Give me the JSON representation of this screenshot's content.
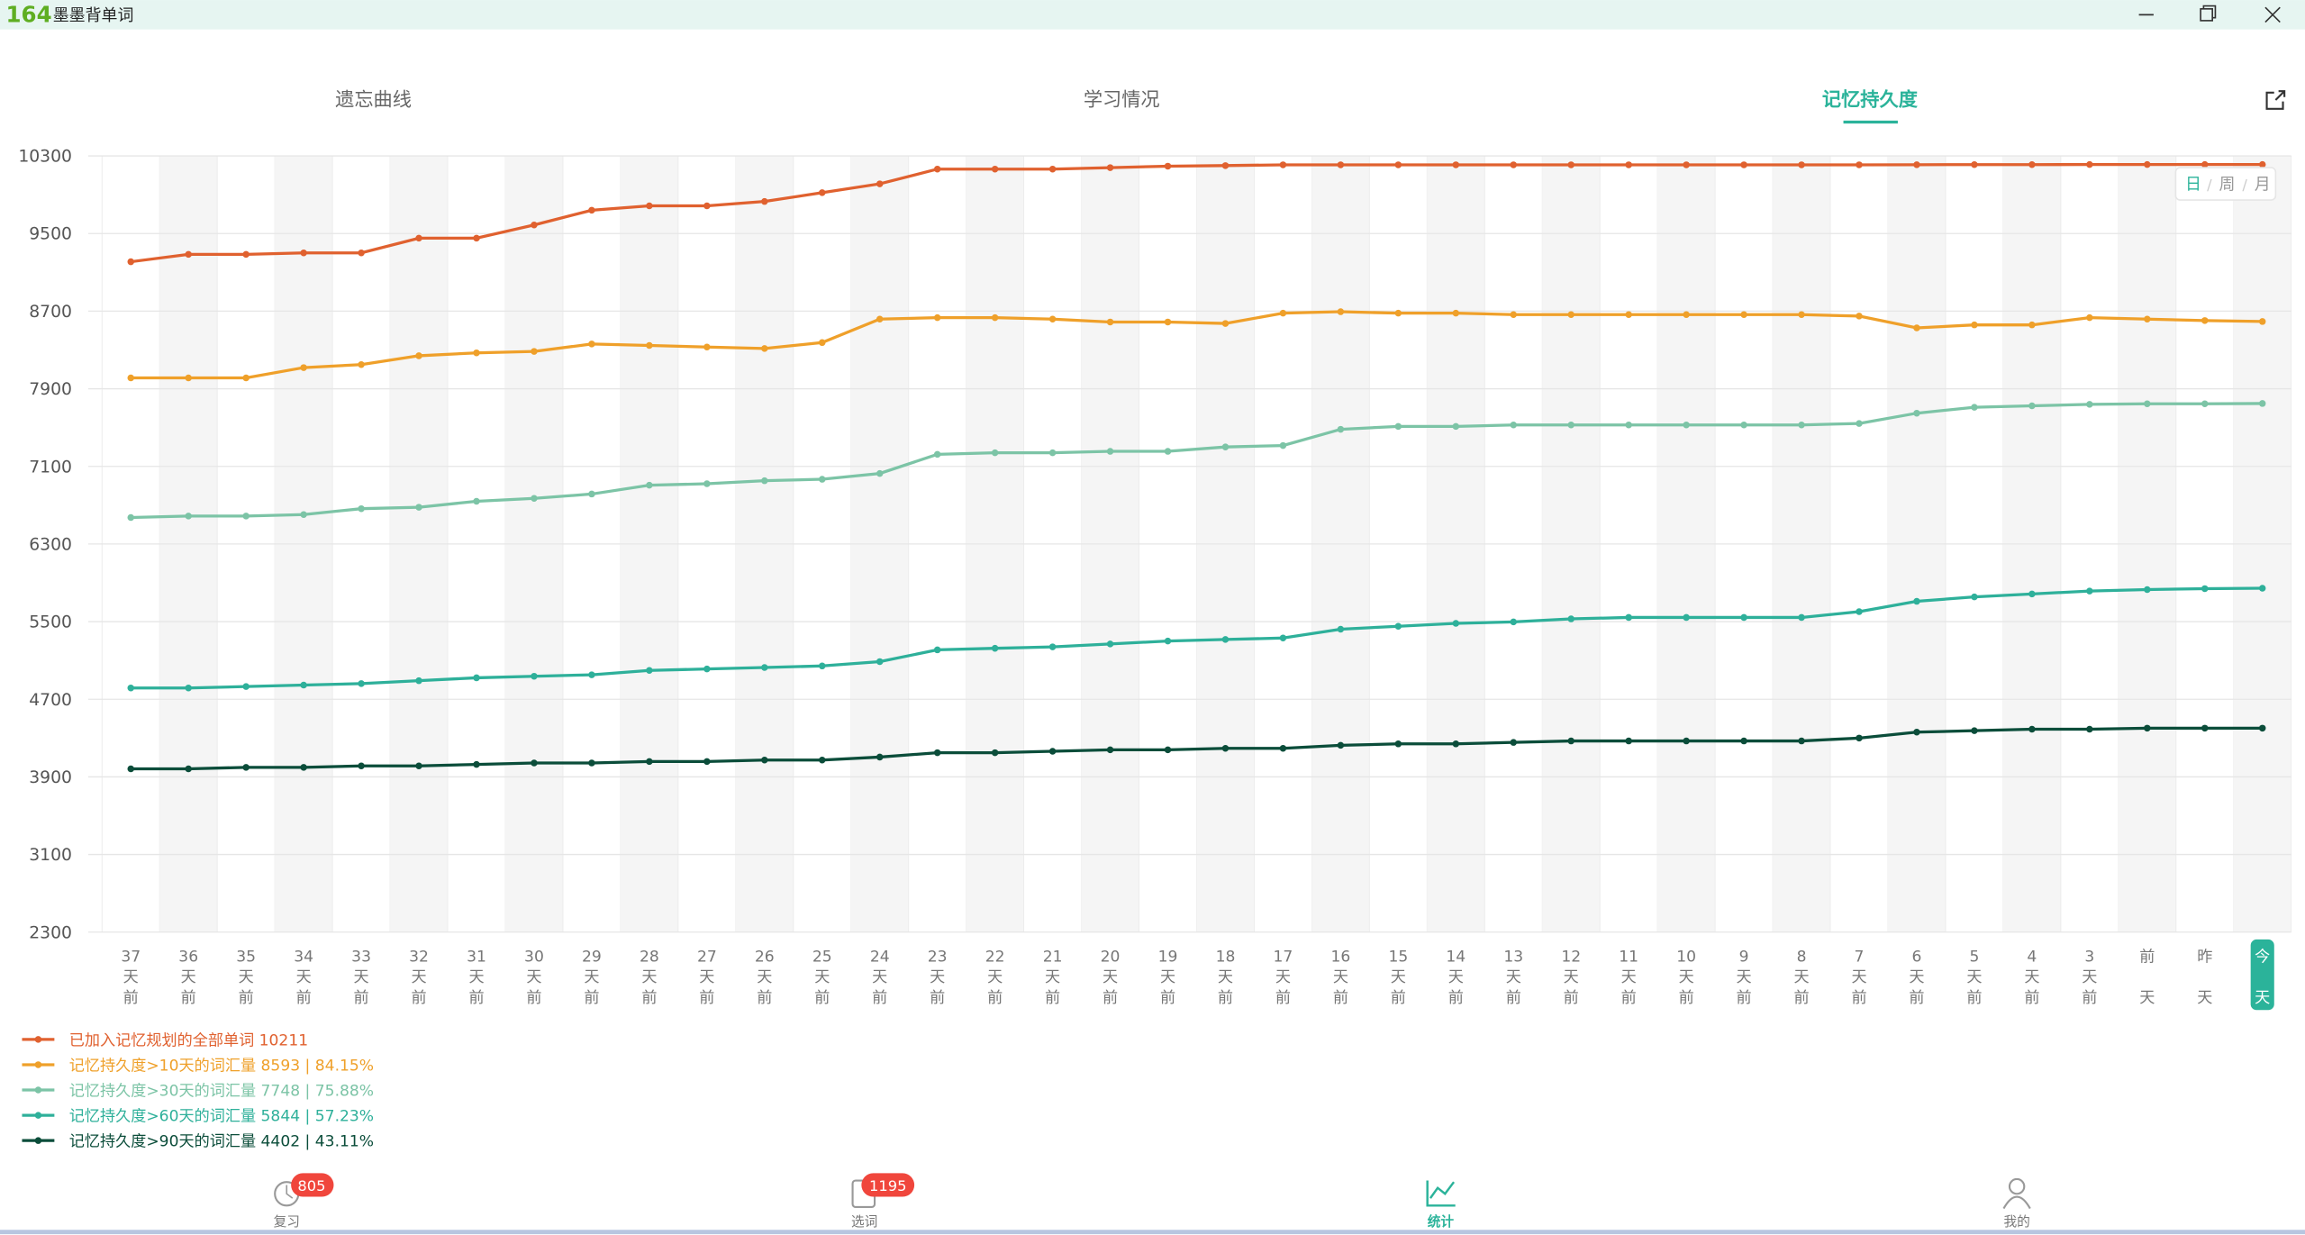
{
  "window": {
    "logo": "164",
    "title": "墨墨背单词"
  },
  "tabs": [
    "遗忘曲线",
    "学习情况",
    "记忆持久度"
  ],
  "range_toggle": [
    "日",
    "周",
    "月"
  ],
  "chart_data": {
    "type": "line",
    "categories": [
      "37天前",
      "36天前",
      "35天前",
      "34天前",
      "33天前",
      "32天前",
      "31天前",
      "30天前",
      "29天前",
      "28天前",
      "27天前",
      "26天前",
      "25天前",
      "24天前",
      "23天前",
      "22天前",
      "21天前",
      "20天前",
      "19天前",
      "18天前",
      "17天前",
      "16天前",
      "15天前",
      "14天前",
      "13天前",
      "12天前",
      "11天前",
      "10天前",
      "9天前",
      "8天前",
      "7天前",
      "6天前",
      "5天前",
      "4天前",
      "3天前",
      "前天",
      "昨天",
      "今天"
    ],
    "ylim": [
      2300,
      10300
    ],
    "yticks": [
      2300,
      3100,
      3900,
      4700,
      5500,
      6300,
      7100,
      7900,
      8700,
      9500,
      10300
    ],
    "grid": true,
    "legend": "bottom-left",
    "series": [
      {
        "name": "已加入记忆规划的全部单词 10211",
        "color": "#e0612f",
        "values": [
          9209,
          9285,
          9285,
          9300,
          9300,
          9452,
          9452,
          9588,
          9740,
          9785,
          9785,
          9830,
          9921,
          10012,
          10164,
          10164,
          10164,
          10179,
          10194,
          10200,
          10208,
          10208,
          10208,
          10208,
          10208,
          10208,
          10208,
          10208,
          10208,
          10208,
          10208,
          10209,
          10210,
          10210,
          10211,
          10211,
          10211,
          10211
        ]
      },
      {
        "name": "记忆持久度>10天的词汇量 8593 | 84.15%",
        "color": "#efa02a",
        "values": [
          8012,
          8012,
          8012,
          8118,
          8149,
          8240,
          8270,
          8285,
          8361,
          8346,
          8330,
          8315,
          8376,
          8618,
          8633,
          8633,
          8618,
          8588,
          8588,
          8573,
          8679,
          8694,
          8679,
          8679,
          8664,
          8664,
          8664,
          8664,
          8664,
          8664,
          8649,
          8527,
          8558,
          8558,
          8633,
          8618,
          8603,
          8593
        ]
      },
      {
        "name": "记忆持久度>30天的词汇量 7748 | 75.88%",
        "color": "#7cc4a6",
        "values": [
          6573,
          6588,
          6588,
          6603,
          6664,
          6679,
          6740,
          6770,
          6815,
          6906,
          6921,
          6952,
          6967,
          7027,
          7224,
          7240,
          7240,
          7255,
          7255,
          7300,
          7315,
          7482,
          7512,
          7512,
          7527,
          7527,
          7527,
          7527,
          7527,
          7527,
          7542,
          7648,
          7709,
          7724,
          7739,
          7745,
          7745,
          7748
        ]
      },
      {
        "name": "记忆持久度>60天的词汇量 5844 | 57.23%",
        "color": "#2eb09a",
        "values": [
          4816,
          4816,
          4831,
          4846,
          4861,
          4891,
          4921,
          4937,
          4952,
          4997,
          5012,
          5027,
          5043,
          5088,
          5209,
          5225,
          5240,
          5270,
          5300,
          5316,
          5331,
          5422,
          5452,
          5482,
          5497,
          5528,
          5543,
          5543,
          5543,
          5543,
          5603,
          5709,
          5755,
          5785,
          5815,
          5830,
          5840,
          5844
        ]
      },
      {
        "name": "记忆持久度>90天的词汇量 4402 | 43.11%",
        "color": "#0b4d3a",
        "values": [
          3983,
          3983,
          3998,
          3998,
          4013,
          4013,
          4028,
          4043,
          4043,
          4058,
          4058,
          4073,
          4073,
          4104,
          4149,
          4149,
          4164,
          4179,
          4179,
          4194,
          4194,
          4225,
          4240,
          4240,
          4255,
          4270,
          4270,
          4270,
          4270,
          4270,
          4300,
          4361,
          4376,
          4391,
          4391,
          4402,
          4402,
          4402
        ]
      }
    ]
  },
  "nav": [
    {
      "label": "复习",
      "badge": "805"
    },
    {
      "label": "选词",
      "badge": "1195"
    },
    {
      "label": "统计"
    },
    {
      "label": "我的"
    }
  ]
}
